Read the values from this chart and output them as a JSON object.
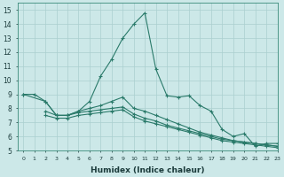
{
  "xlabel": "Humidex (Indice chaleur)",
  "xlim": [
    -0.5,
    23
  ],
  "ylim": [
    5,
    15.5
  ],
  "xticks": [
    0,
    1,
    2,
    3,
    4,
    5,
    6,
    7,
    8,
    9,
    10,
    11,
    12,
    13,
    14,
    15,
    16,
    17,
    18,
    19,
    20,
    21,
    22,
    23
  ],
  "yticks": [
    5,
    6,
    7,
    8,
    9,
    10,
    11,
    12,
    13,
    14,
    15
  ],
  "bg_color": "#cce8e8",
  "grid_color": "#aacfcf",
  "line_color": "#2a7a6a",
  "series": [
    {
      "x": [
        0,
        1,
        2,
        3,
        4,
        5,
        6,
        7,
        8,
        9,
        10,
        11,
        12,
        13,
        14,
        15,
        16,
        17,
        18,
        19,
        20,
        21,
        22,
        23
      ],
      "y": [
        9,
        9,
        8.5,
        7.5,
        7.5,
        7.8,
        8.5,
        10.3,
        11.5,
        13,
        14,
        14.8,
        10.8,
        8.9,
        8.8,
        8.9,
        8.2,
        7.8,
        6.5,
        6.0,
        6.2,
        5.3,
        5.5,
        5.5
      ]
    },
    {
      "x": [
        0,
        2,
        3,
        4,
        5,
        6,
        7,
        8,
        9,
        10,
        11,
        12,
        13,
        14,
        15,
        16,
        17,
        18,
        19,
        20,
        21,
        22,
        23
      ],
      "y": [
        9,
        8.5,
        7.5,
        7.5,
        7.8,
        8.0,
        8.2,
        8.5,
        8.8,
        8.0,
        7.8,
        7.5,
        7.2,
        6.9,
        6.6,
        6.3,
        6.1,
        5.9,
        5.7,
        5.6,
        5.5,
        5.4,
        5.3
      ]
    },
    {
      "x": [
        2,
        3,
        4,
        5,
        6,
        7,
        8,
        9,
        10,
        11,
        12,
        13,
        14,
        15,
        16,
        17,
        18,
        19,
        20,
        21,
        22,
        23
      ],
      "y": [
        7.8,
        7.5,
        7.5,
        7.7,
        7.8,
        7.9,
        8.0,
        8.1,
        7.6,
        7.3,
        7.1,
        6.8,
        6.6,
        6.4,
        6.2,
        6.0,
        5.8,
        5.7,
        5.6,
        5.5,
        5.4,
        5.3
      ]
    },
    {
      "x": [
        2,
        3,
        4,
        5,
        6,
        7,
        8,
        9,
        10,
        11,
        12,
        13,
        14,
        15,
        16,
        17,
        18,
        19,
        20,
        21,
        22,
        23
      ],
      "y": [
        7.5,
        7.3,
        7.3,
        7.5,
        7.6,
        7.7,
        7.8,
        7.9,
        7.4,
        7.1,
        6.9,
        6.7,
        6.5,
        6.3,
        6.1,
        5.9,
        5.7,
        5.6,
        5.5,
        5.4,
        5.3,
        5.2
      ]
    }
  ]
}
